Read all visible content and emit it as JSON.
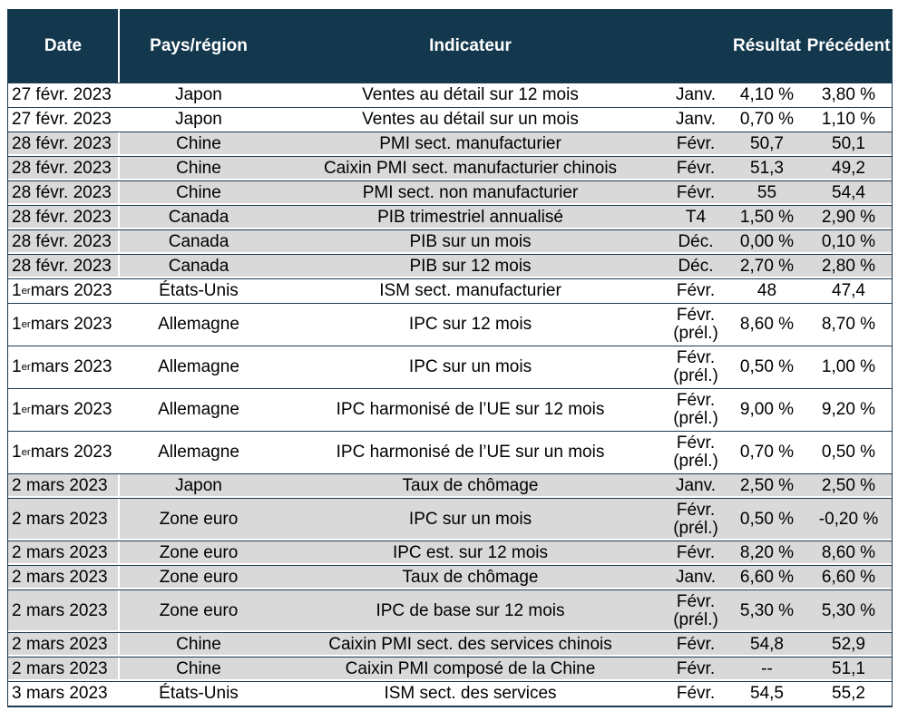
{
  "colors": {
    "header_bg": "#13384e",
    "header_text": "#ffffff",
    "row_alt_bg": "#d9d9d9",
    "grid_line": "#1d3c52",
    "text": "#000000"
  },
  "table": {
    "columns": [
      {
        "key": "date",
        "label": "Date"
      },
      {
        "key": "region",
        "label": "Pays/région"
      },
      {
        "key": "indicator",
        "label": "Indicateur"
      },
      {
        "key": "period",
        "label": ""
      },
      {
        "key": "result",
        "label": "Résultat"
      },
      {
        "key": "previous",
        "label": "Précédent"
      }
    ],
    "rows": [
      {
        "date_pre": "27 févr. 2023",
        "date_sup": "",
        "date_post": "",
        "region": "Japon",
        "indicator": "Ventes au détail sur 12 mois",
        "period": "Janv.",
        "result": "4,10 %",
        "previous": "3,80 %",
        "shade": "white"
      },
      {
        "date_pre": "27 févr. 2023",
        "date_sup": "",
        "date_post": "",
        "region": "Japon",
        "indicator": "Ventes au détail sur un mois",
        "period": "Janv.",
        "result": "0,70 %",
        "previous": "1,10 %",
        "shade": "white"
      },
      {
        "date_pre": "28 févr. 2023",
        "date_sup": "",
        "date_post": "",
        "region": "Chine",
        "indicator": "PMI sect. manufacturier",
        "period": "Févr.",
        "result": "50,7",
        "previous": "50,1",
        "shade": "gray"
      },
      {
        "date_pre": "28 févr. 2023",
        "date_sup": "",
        "date_post": "",
        "region": "Chine",
        "indicator": "Caixin PMI sect. manufacturier chinois",
        "period": "Févr.",
        "result": "51,3",
        "previous": "49,2",
        "shade": "gray"
      },
      {
        "date_pre": "28 févr. 2023",
        "date_sup": "",
        "date_post": "",
        "region": "Chine",
        "indicator": "PMI sect. non manufacturier",
        "period": "Févr.",
        "result": "55",
        "previous": "54,4",
        "shade": "gray"
      },
      {
        "date_pre": "28 févr. 2023",
        "date_sup": "",
        "date_post": "",
        "region": "Canada",
        "indicator": "PIB trimestriel annualisé",
        "period": "T4",
        "result": "1,50 %",
        "previous": "2,90 %",
        "shade": "gray"
      },
      {
        "date_pre": "28 févr. 2023",
        "date_sup": "",
        "date_post": "",
        "region": "Canada",
        "indicator": "PIB sur un mois",
        "period": "Déc.",
        "result": "0,00 %",
        "previous": "0,10 %",
        "shade": "gray"
      },
      {
        "date_pre": "28 févr. 2023",
        "date_sup": "",
        "date_post": "",
        "region": "Canada",
        "indicator": "PIB sur 12 mois",
        "period": "Déc.",
        "result": "2,70 %",
        "previous": "2,80 %",
        "shade": "gray"
      },
      {
        "date_pre": "1",
        "date_sup": "er",
        "date_post": " mars 2023",
        "region": "États-Unis",
        "indicator": "ISM sect. manufacturier",
        "period": "Févr.",
        "result": "48",
        "previous": "47,4",
        "shade": "white"
      },
      {
        "date_pre": "1",
        "date_sup": "er",
        "date_post": " mars 2023",
        "region": "Allemagne",
        "indicator": "IPC sur 12 mois",
        "period": "Févr.\n(prél.)",
        "result": "8,60 %",
        "previous": "8,70 %",
        "shade": "white"
      },
      {
        "date_pre": "1",
        "date_sup": "er",
        "date_post": " mars 2023",
        "region": "Allemagne",
        "indicator": "IPC sur un mois",
        "period": "Févr.\n(prél.)",
        "result": "0,50 %",
        "previous": "1,00 %",
        "shade": "white"
      },
      {
        "date_pre": "1",
        "date_sup": "er",
        "date_post": " mars 2023",
        "region": "Allemagne",
        "indicator": "IPC harmonisé de l’UE sur 12 mois",
        "period": "Févr.\n(prél.)",
        "result": "9,00 %",
        "previous": "9,20 %",
        "shade": "white"
      },
      {
        "date_pre": "1",
        "date_sup": "er",
        "date_post": " mars 2023",
        "region": "Allemagne",
        "indicator": "IPC harmonisé de l’UE sur un mois",
        "period": "Févr.\n(prél.)",
        "result": "0,70 %",
        "previous": "0,50 %",
        "shade": "white"
      },
      {
        "date_pre": "2 mars 2023",
        "date_sup": "",
        "date_post": "",
        "region": "Japon",
        "indicator": "Taux de chômage",
        "period": "Janv.",
        "result": "2,50 %",
        "previous": "2,50 %",
        "shade": "gray"
      },
      {
        "date_pre": "2 mars 2023",
        "date_sup": "",
        "date_post": "",
        "region": "Zone euro",
        "indicator": "IPC sur un mois",
        "period": "Févr.\n(prél.)",
        "result": "0,50 %",
        "previous": "-0,20 %",
        "shade": "gray"
      },
      {
        "date_pre": "2 mars 2023",
        "date_sup": "",
        "date_post": "",
        "region": "Zone euro",
        "indicator": "IPC est. sur 12 mois",
        "period": "Févr.",
        "result": "8,20 %",
        "previous": "8,60 %",
        "shade": "gray"
      },
      {
        "date_pre": "2 mars 2023",
        "date_sup": "",
        "date_post": "",
        "region": "Zone euro",
        "indicator": "Taux de chômage",
        "period": "Janv.",
        "result": "6,60 %",
        "previous": "6,60 %",
        "shade": "gray"
      },
      {
        "date_pre": "2 mars 2023",
        "date_sup": "",
        "date_post": "",
        "region": "Zone euro",
        "indicator": "IPC de base sur 12 mois",
        "period": "Févr.\n(prél.)",
        "result": "5,30 %",
        "previous": "5,30 %",
        "shade": "gray"
      },
      {
        "date_pre": "2 mars 2023",
        "date_sup": "",
        "date_post": "",
        "region": "Chine",
        "indicator": "Caixin PMI sect. des services chinois",
        "period": "Févr.",
        "result": "54,8",
        "previous": "52,9",
        "shade": "gray"
      },
      {
        "date_pre": "2 mars 2023",
        "date_sup": "",
        "date_post": "",
        "region": "Chine",
        "indicator": "Caixin PMI composé de la Chine",
        "period": "Févr.",
        "result": "--",
        "previous": "51,1",
        "shade": "gray"
      },
      {
        "date_pre": "3 mars 2023",
        "date_sup": "",
        "date_post": "",
        "region": "États-Unis",
        "indicator": "ISM sect. des services",
        "period": "Févr.",
        "result": "54,5",
        "previous": "55,2",
        "shade": "white"
      }
    ]
  }
}
